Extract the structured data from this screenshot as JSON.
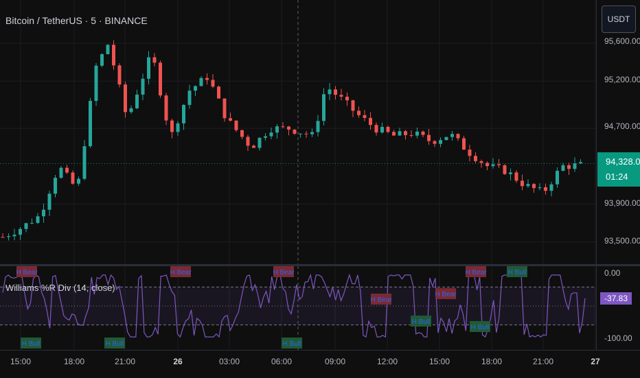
{
  "header": {
    "title": "Bitcoin / TetherUS · 5 · BINANCE",
    "currency_button": "USDT"
  },
  "price_axis": {
    "labels": [
      "95,600.00",
      "95,200.00",
      "94,700.00",
      "93,900.00",
      "93,500.00"
    ],
    "current_price": "94,328.00",
    "countdown": "01:24"
  },
  "indicator": {
    "title": "Williams %R Div (14, close)",
    "axis_labels": [
      "0.00",
      "-100.00"
    ],
    "current_value": "-37.83",
    "tags": [
      "H Bear",
      "H Bear",
      "H Bear",
      "H Bear",
      "H Bear",
      "H Bear",
      "H Bull",
      "H Bull",
      "H Bull",
      "H Bull",
      "H Bull",
      "H Bull"
    ]
  },
  "time_axis": {
    "labels": [
      "15:00",
      "18:00",
      "21:00",
      "26",
      "03:00",
      "06:00",
      "09:00",
      "12:00",
      "15:00",
      "18:00",
      "21:00",
      "27"
    ]
  },
  "colors": {
    "up": "#26a69a",
    "down": "#ef5350",
    "indicator_line": "#7e57c2",
    "price_tag": "#089981"
  },
  "chart_data": {
    "type": "candlestick",
    "title": "Bitcoin / TetherUS · 5 · BINANCE",
    "y_ticks": [
      95600,
      95200,
      94700,
      93900,
      93500
    ],
    "current_price": 94328,
    "close_path": [
      [
        0,
        93550
      ],
      [
        3,
        93650
      ],
      [
        6,
        93780
      ],
      [
        9,
        94300
      ],
      [
        12,
        94050
      ],
      [
        15,
        95350
      ],
      [
        17,
        95600
      ],
      [
        20,
        94800
      ],
      [
        24,
        95500
      ],
      [
        27,
        94600
      ],
      [
        30,
        95100
      ],
      [
        33,
        95250
      ],
      [
        36,
        94800
      ],
      [
        40,
        94500
      ],
      [
        43,
        94700
      ],
      [
        46,
        94700
      ],
      [
        50,
        94620
      ],
      [
        52,
        95150
      ],
      [
        55,
        94980
      ],
      [
        57,
        94850
      ],
      [
        60,
        94700
      ],
      [
        63,
        94620
      ],
      [
        66,
        94650
      ],
      [
        69,
        94560
      ],
      [
        72,
        94640
      ],
      [
        75,
        94450
      ],
      [
        78,
        94300
      ],
      [
        81,
        94250
      ],
      [
        84,
        94100
      ],
      [
        87,
        94020
      ],
      [
        90,
        94300
      ],
      [
        93,
        94310
      ]
    ]
  }
}
